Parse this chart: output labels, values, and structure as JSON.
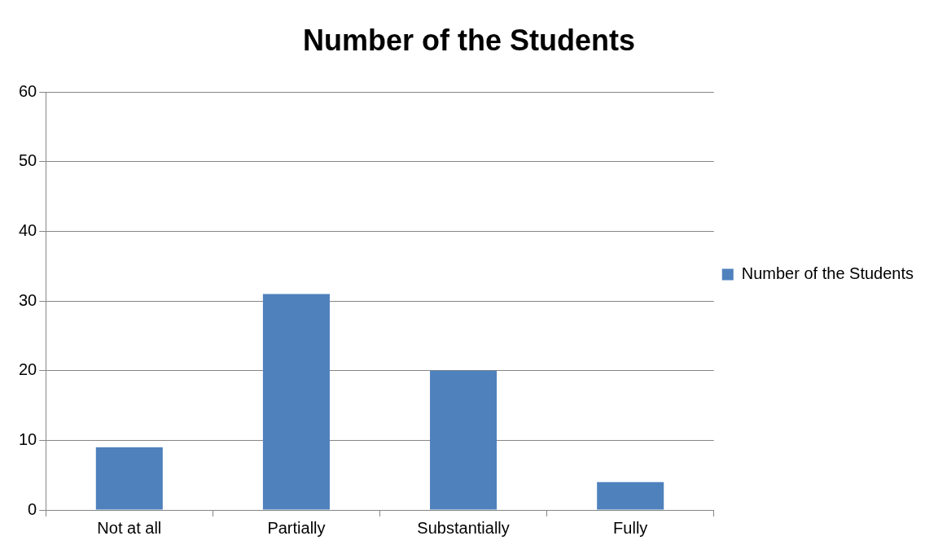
{
  "chart_data": {
    "type": "bar",
    "title": "Number of the Students",
    "categories": [
      "Not at all",
      "Partially",
      "Substantially",
      "Fully"
    ],
    "series": [
      {
        "name": "Number of the Students",
        "color": "#4f81bd",
        "values": [
          9,
          31,
          20,
          4
        ]
      }
    ],
    "ylim": [
      0,
      60
    ],
    "yticks": [
      0,
      10,
      20,
      30,
      40,
      50,
      60
    ],
    "grid": "y",
    "legend": "right"
  }
}
